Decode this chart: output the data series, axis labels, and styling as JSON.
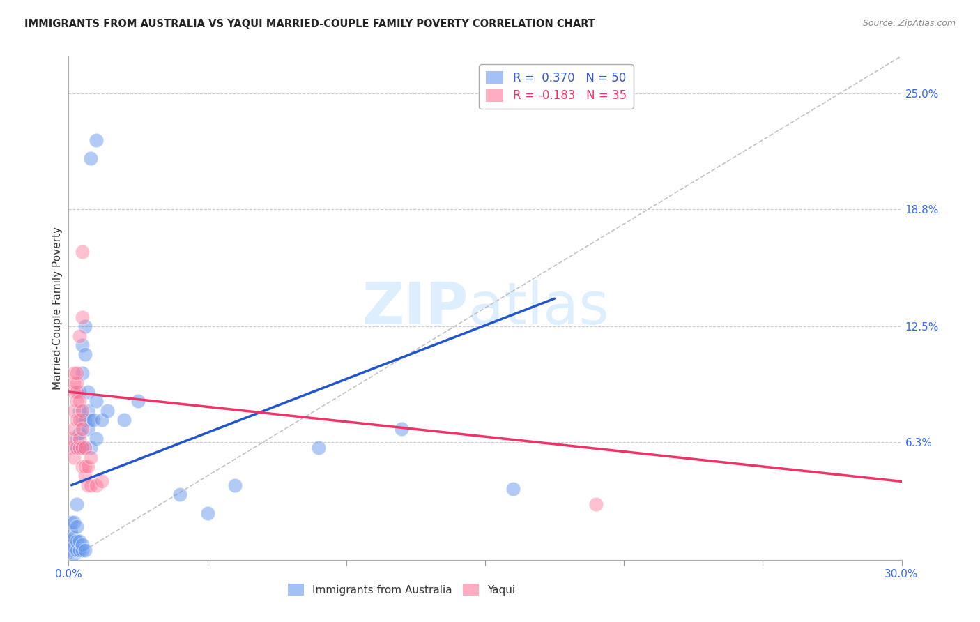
{
  "title": "IMMIGRANTS FROM AUSTRALIA VS YAQUI MARRIED-COUPLE FAMILY POVERTY CORRELATION CHART",
  "source": "Source: ZipAtlas.com",
  "ylabel": "Married-Couple Family Poverty",
  "xlim": [
    0.0,
    0.3
  ],
  "ylim": [
    0.0,
    0.27
  ],
  "right_ytick_labels": [
    "6.3%",
    "12.5%",
    "18.8%",
    "25.0%"
  ],
  "right_ytick_positions": [
    0.063,
    0.125,
    0.188,
    0.25
  ],
  "grid_color": "#cccccc",
  "background_color": "#ffffff",
  "blue_color": "#6699ee",
  "pink_color": "#ff7799",
  "blue_trend_x": [
    0.001,
    0.175
  ],
  "blue_trend_y": [
    0.04,
    0.14
  ],
  "pink_trend_x": [
    0.0,
    0.3
  ],
  "pink_trend_y": [
    0.09,
    0.042
  ],
  "ref_line_x": [
    0.0,
    0.3
  ],
  "ref_line_y": [
    0.0,
    0.27
  ],
  "blue_dots": [
    [
      0.001,
      0.005
    ],
    [
      0.001,
      0.01
    ],
    [
      0.001,
      0.015
    ],
    [
      0.001,
      0.02
    ],
    [
      0.002,
      0.003
    ],
    [
      0.002,
      0.007
    ],
    [
      0.002,
      0.012
    ],
    [
      0.002,
      0.02
    ],
    [
      0.003,
      0.005
    ],
    [
      0.003,
      0.01
    ],
    [
      0.003,
      0.018
    ],
    [
      0.003,
      0.03
    ],
    [
      0.003,
      0.06
    ],
    [
      0.003,
      0.065
    ],
    [
      0.004,
      0.005
    ],
    [
      0.004,
      0.01
    ],
    [
      0.004,
      0.06
    ],
    [
      0.004,
      0.068
    ],
    [
      0.004,
      0.08
    ],
    [
      0.004,
      0.09
    ],
    [
      0.005,
      0.005
    ],
    [
      0.005,
      0.008
    ],
    [
      0.005,
      0.06
    ],
    [
      0.005,
      0.075
    ],
    [
      0.005,
      0.1
    ],
    [
      0.005,
      0.115
    ],
    [
      0.006,
      0.005
    ],
    [
      0.006,
      0.075
    ],
    [
      0.006,
      0.11
    ],
    [
      0.006,
      0.125
    ],
    [
      0.007,
      0.07
    ],
    [
      0.007,
      0.08
    ],
    [
      0.007,
      0.09
    ],
    [
      0.008,
      0.06
    ],
    [
      0.008,
      0.075
    ],
    [
      0.009,
      0.075
    ],
    [
      0.01,
      0.065
    ],
    [
      0.01,
      0.085
    ],
    [
      0.012,
      0.075
    ],
    [
      0.014,
      0.08
    ],
    [
      0.02,
      0.075
    ],
    [
      0.025,
      0.085
    ],
    [
      0.04,
      0.035
    ],
    [
      0.05,
      0.025
    ],
    [
      0.06,
      0.04
    ],
    [
      0.09,
      0.06
    ],
    [
      0.12,
      0.07
    ],
    [
      0.16,
      0.038
    ],
    [
      0.008,
      0.215
    ],
    [
      0.01,
      0.225
    ]
  ],
  "pink_dots": [
    [
      0.001,
      0.06
    ],
    [
      0.001,
      0.065
    ],
    [
      0.002,
      0.055
    ],
    [
      0.002,
      0.07
    ],
    [
      0.002,
      0.08
    ],
    [
      0.002,
      0.09
    ],
    [
      0.002,
      0.095
    ],
    [
      0.002,
      0.1
    ],
    [
      0.003,
      0.06
    ],
    [
      0.003,
      0.075
    ],
    [
      0.003,
      0.085
    ],
    [
      0.003,
      0.09
    ],
    [
      0.003,
      0.095
    ],
    [
      0.003,
      0.1
    ],
    [
      0.004,
      0.06
    ],
    [
      0.004,
      0.065
    ],
    [
      0.004,
      0.075
    ],
    [
      0.004,
      0.085
    ],
    [
      0.004,
      0.12
    ],
    [
      0.005,
      0.05
    ],
    [
      0.005,
      0.06
    ],
    [
      0.005,
      0.07
    ],
    [
      0.005,
      0.08
    ],
    [
      0.005,
      0.13
    ],
    [
      0.005,
      0.165
    ],
    [
      0.006,
      0.045
    ],
    [
      0.006,
      0.05
    ],
    [
      0.006,
      0.06
    ],
    [
      0.007,
      0.04
    ],
    [
      0.007,
      0.05
    ],
    [
      0.008,
      0.04
    ],
    [
      0.008,
      0.055
    ],
    [
      0.01,
      0.04
    ],
    [
      0.012,
      0.042
    ],
    [
      0.19,
      0.03
    ]
  ],
  "xtick_positions": [
    0.0,
    0.05,
    0.1,
    0.15,
    0.2,
    0.25,
    0.3
  ],
  "xtick_show_labels": [
    true,
    false,
    false,
    false,
    false,
    false,
    true
  ]
}
